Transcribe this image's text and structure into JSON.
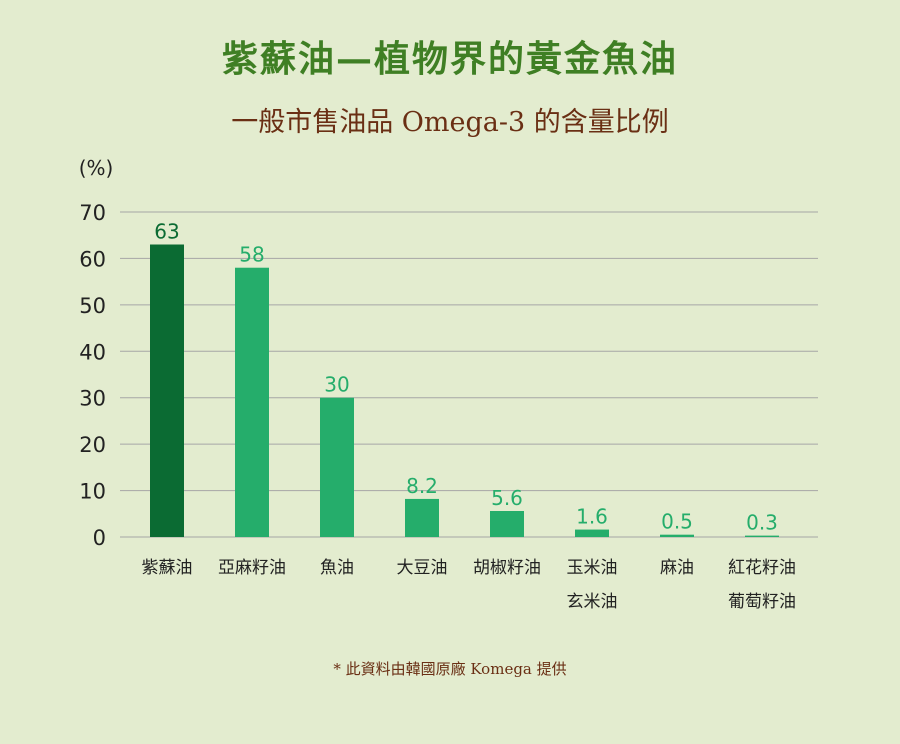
{
  "header": {
    "title": "紫蘇油—植物界的黃金魚油",
    "subtitle": "一般市售油品 Omega-3 的含量比例"
  },
  "footnote": "* 此資料由韓國原廠 Komega 提供",
  "colors": {
    "highlight_bar": "#0b6b33",
    "bar": "#25ad6b",
    "highlight_label": "#0b6b33",
    "label": "#25ad6b",
    "grid": "#a6a6a6",
    "axis_text": "#222222",
    "title": "#3f7f24",
    "subtitle": "#6a2f14"
  },
  "chart_data": {
    "type": "bar",
    "ylabel": "(%)",
    "ylim": [
      0,
      70
    ],
    "yticks": [
      0,
      10,
      20,
      30,
      40,
      50,
      60,
      70
    ],
    "grid": true,
    "categories": [
      [
        "紫蘇油"
      ],
      [
        "亞麻籽油"
      ],
      [
        "魚油"
      ],
      [
        "大豆油"
      ],
      [
        "胡椒籽油"
      ],
      [
        "玉米油",
        "玄米油"
      ],
      [
        "麻油"
      ],
      [
        "紅花籽油",
        "葡萄籽油"
      ]
    ],
    "values": [
      63,
      58,
      30,
      8.2,
      5.6,
      1.6,
      0.5,
      0.3
    ],
    "value_labels": [
      "63",
      "58",
      "30",
      "8.2",
      "5.6",
      "1.6",
      "0.5",
      "0.3"
    ],
    "highlight_index": 0
  }
}
